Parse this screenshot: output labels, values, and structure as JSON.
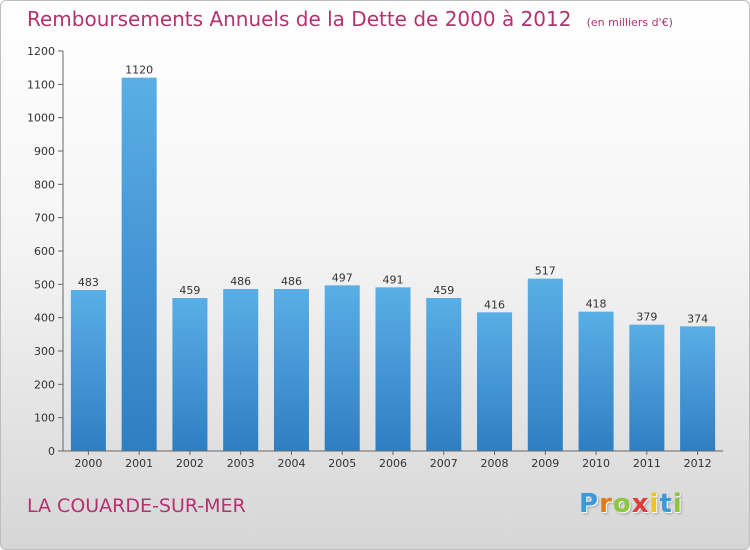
{
  "header": {
    "title": "Remboursements Annuels de la Dette de 2000 à 2012",
    "unit": "(en milliers d'€)"
  },
  "footer": {
    "commune": "LA COUARDE-SUR-MER",
    "logo": [
      "P",
      "r",
      "o",
      "x",
      "i",
      "t",
      "i"
    ],
    "logo_colors": [
      "#3a9ad9",
      "#e07b1a",
      "#8cc63f",
      "#e03a3a",
      "#f2c318",
      "#3a9ad9",
      "#8cc63f"
    ]
  },
  "chart_data": {
    "type": "bar",
    "title": "Remboursements Annuels de la Dette de 2000 à 2012",
    "xlabel": "",
    "ylabel": "",
    "categories": [
      "2000",
      "2001",
      "2002",
      "2003",
      "2004",
      "2005",
      "2006",
      "2007",
      "2008",
      "2009",
      "2010",
      "2011",
      "2012"
    ],
    "values": [
      483,
      1120,
      459,
      486,
      486,
      497,
      491,
      459,
      416,
      517,
      418,
      379,
      374
    ],
    "ylim": [
      0,
      1200
    ],
    "yticks": [
      0,
      100,
      200,
      300,
      400,
      500,
      600,
      700,
      800,
      900,
      1000,
      1100,
      1200
    ],
    "grid": false,
    "bar_color_light": "#5aaee6",
    "bar_color_dark": "#2e7fc2",
    "axis_color": "#666666"
  }
}
